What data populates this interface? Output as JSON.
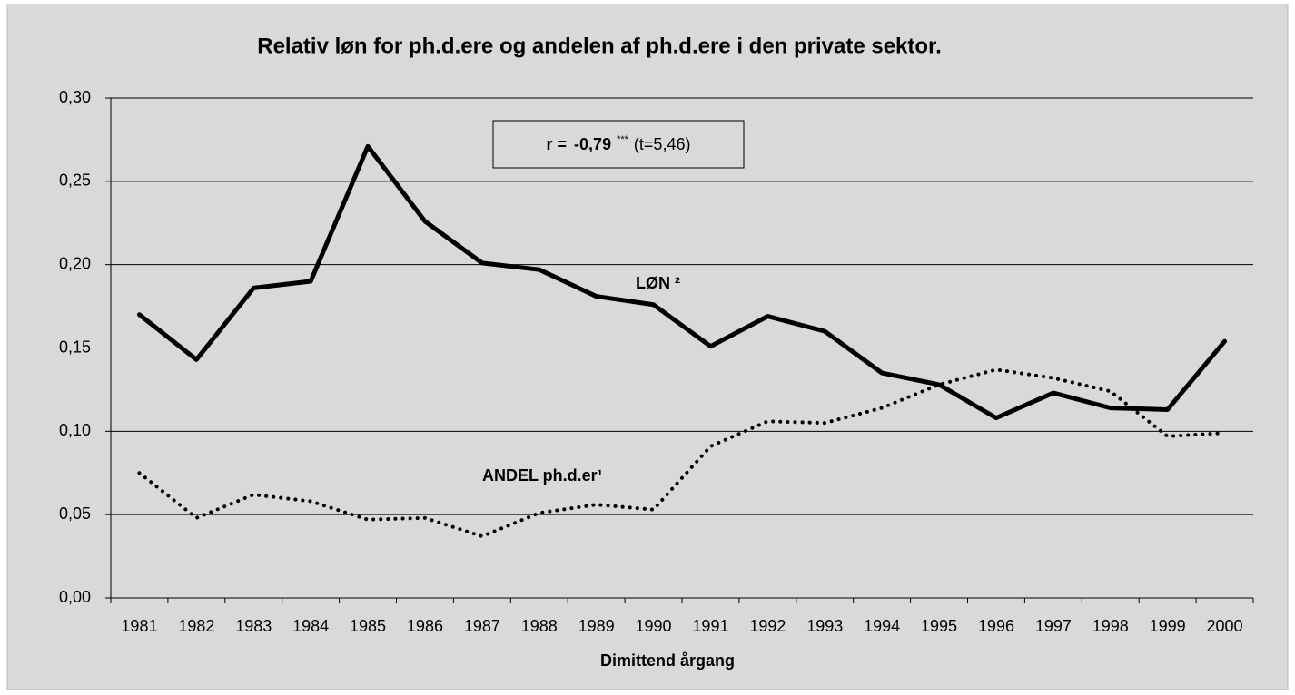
{
  "chart_data": {
    "type": "line",
    "title": "Relativ løn for ph.d.ere og andelen af ph.d.ere i den private sektor.",
    "xlabel": "Dimittend årgang",
    "annotation": {
      "r_label": "r =",
      "r_value": "-0,79",
      "stars": "***",
      "t": "(t=5,46)"
    },
    "categories": [
      "1981",
      "1982",
      "1983",
      "1984",
      "1985",
      "1986",
      "1987",
      "1988",
      "1989",
      "1990",
      "1991",
      "1992",
      "1993",
      "1994",
      "1995",
      "1996",
      "1997",
      "1998",
      "1999",
      "2000"
    ],
    "series": [
      {
        "name": "LØN ²",
        "color": "#000000",
        "dash": "solid",
        "values": [
          0.17,
          0.143,
          0.186,
          0.19,
          0.271,
          0.226,
          0.201,
          0.197,
          0.181,
          0.176,
          0.151,
          0.169,
          0.16,
          0.135,
          0.128,
          0.108,
          0.123,
          0.114,
          0.113,
          0.154
        ]
      },
      {
        "name": "ANDEL ph.d.er¹",
        "color": "#000000",
        "dash": "dotted",
        "values": [
          0.075,
          0.048,
          0.062,
          0.058,
          0.047,
          0.048,
          0.037,
          0.051,
          0.056,
          0.053,
          0.091,
          0.106,
          0.105,
          0.114,
          0.128,
          0.137,
          0.132,
          0.124,
          0.097,
          0.099
        ]
      }
    ],
    "ylim": [
      0,
      0.3
    ],
    "yticks": [
      {
        "value": 0,
        "label": "0,00"
      },
      {
        "value": 0.05,
        "label": "0,05"
      },
      {
        "value": 0.1,
        "label": "0,10"
      },
      {
        "value": 0.15,
        "label": "0,15"
      },
      {
        "value": 0.2,
        "label": "0,20"
      },
      {
        "value": 0.25,
        "label": "0,25"
      },
      {
        "value": 0.3,
        "label": "0,30"
      }
    ],
    "grid": true
  }
}
